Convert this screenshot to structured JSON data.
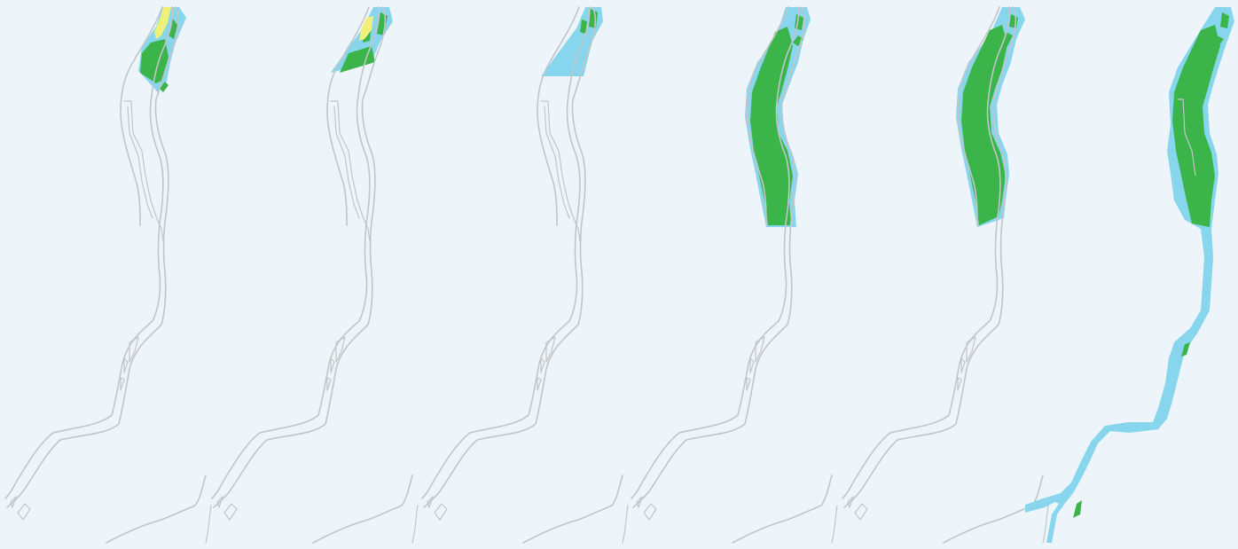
{
  "map": {
    "colors": {
      "background": "#edf5fa",
      "river_outline": "#c3c5c8",
      "water": "#87d6ee",
      "vegetation": "#3bb44a",
      "sand": "#eef078"
    },
    "panels": [
      {
        "id": "stage-1",
        "water": "upper-reach-partial",
        "vegetation": "upper-bars",
        "sand": "upper-bar-large"
      },
      {
        "id": "stage-2",
        "water": "upper-reach-partial",
        "vegetation": "upper-bars",
        "sand": "upper-bar-small"
      },
      {
        "id": "stage-3",
        "water": "upper-reach-partial",
        "vegetation": "upper-bars",
        "sand": "none"
      },
      {
        "id": "stage-4",
        "water": "upper-reach-full",
        "vegetation": "upper-island",
        "sand": "none"
      },
      {
        "id": "stage-5",
        "water": "upper-reach-full",
        "vegetation": "upper-island",
        "sand": "none"
      },
      {
        "id": "stage-6",
        "water": "entire-river",
        "vegetation": "upper-island-and-lower-bars",
        "sand": "none"
      }
    ]
  }
}
